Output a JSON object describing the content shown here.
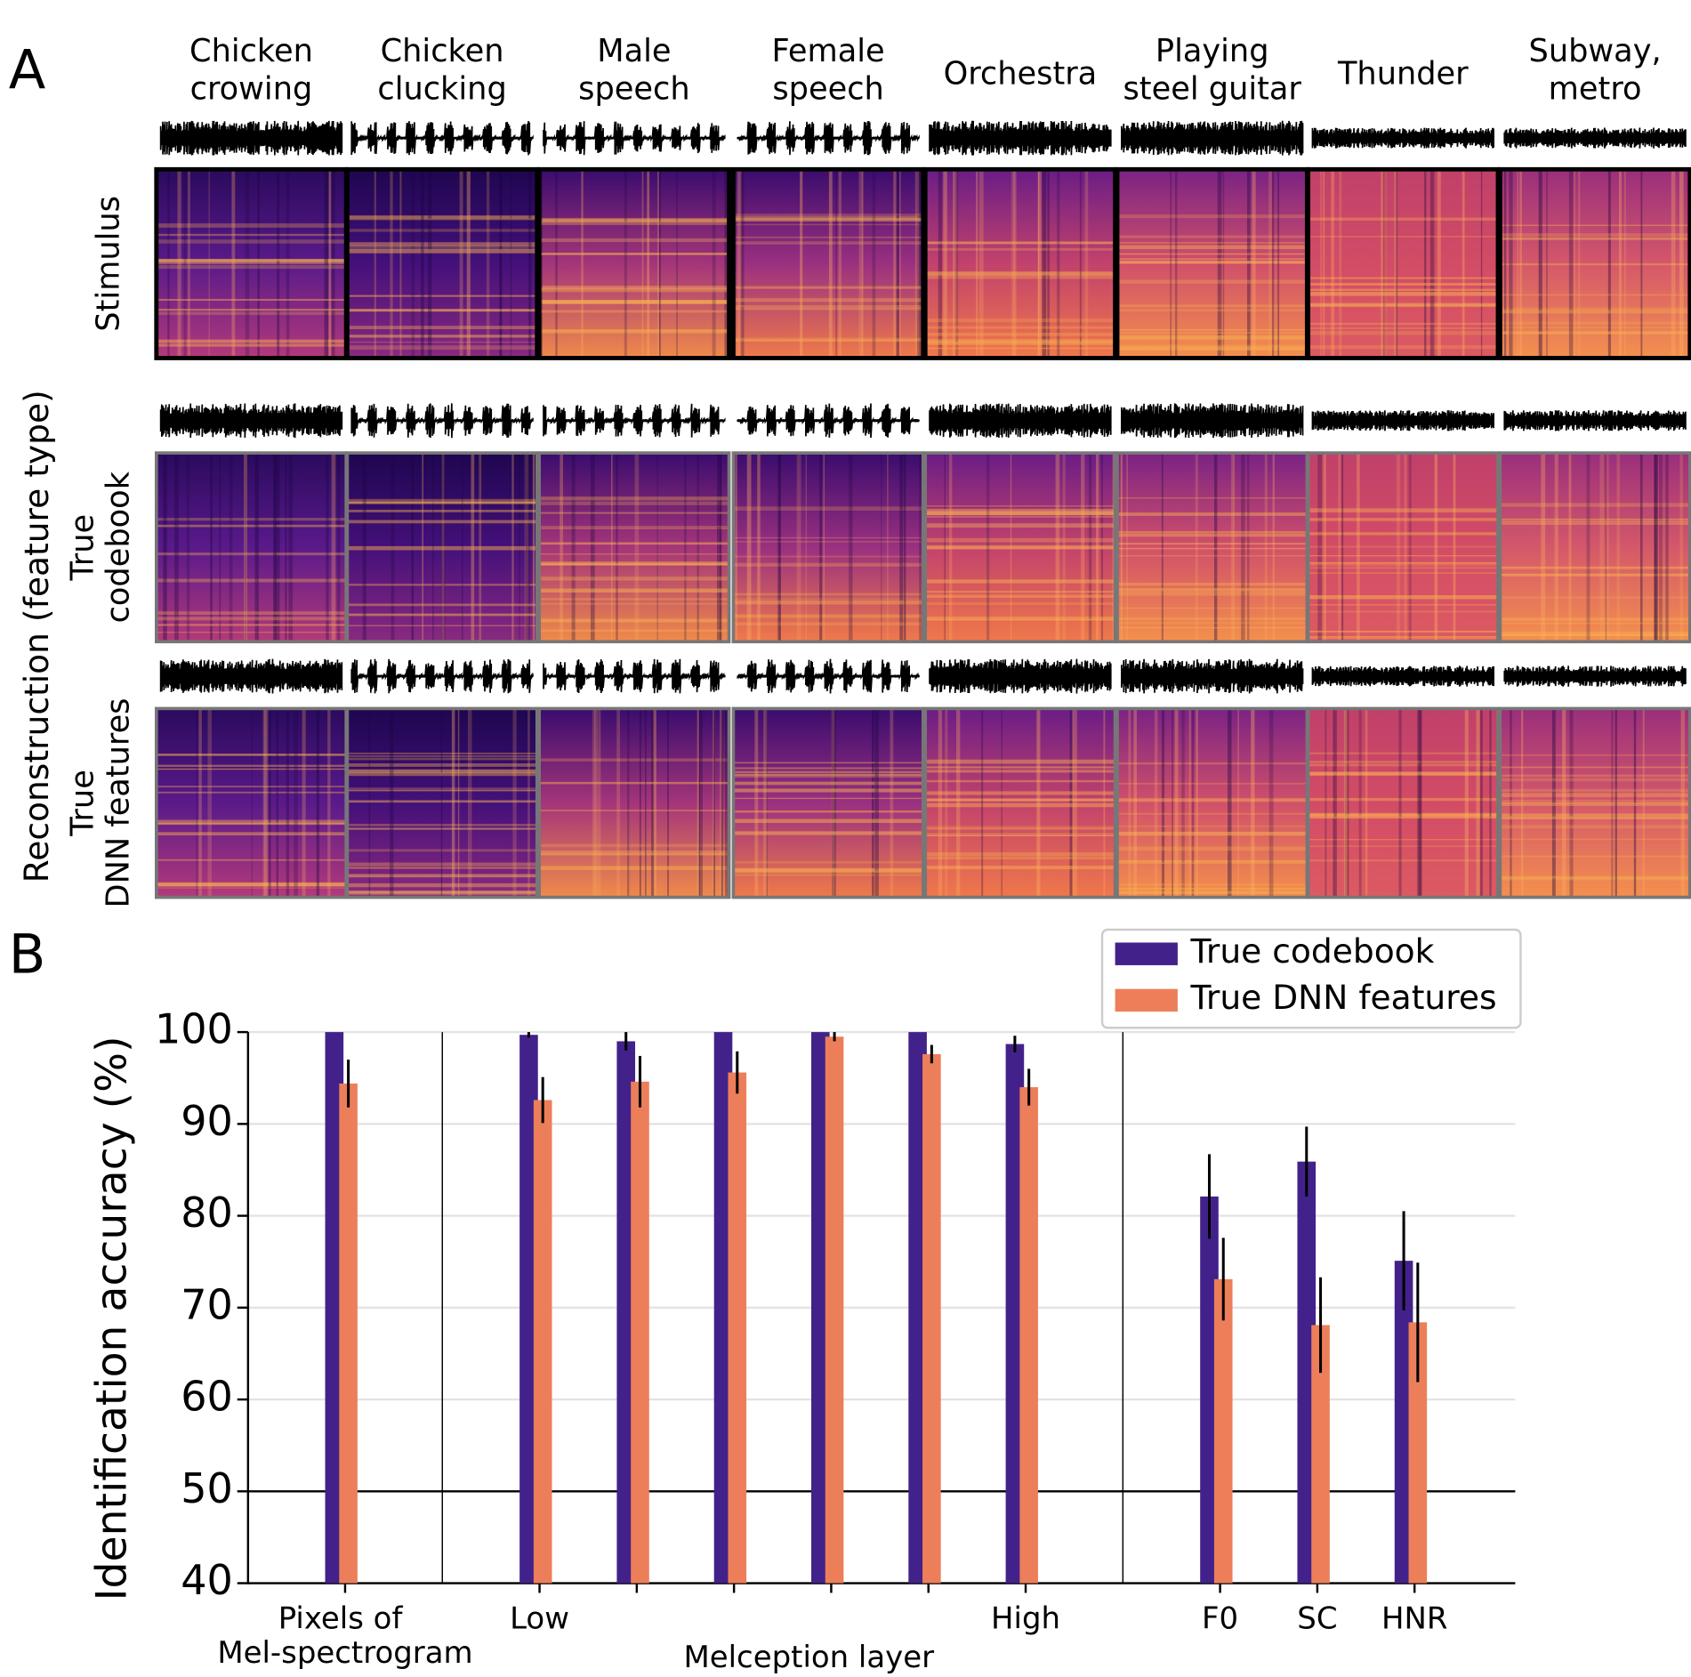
{
  "panel_a": {
    "label": "A",
    "columns": [
      [
        "Chicken",
        "crowing"
      ],
      [
        "Chicken",
        "clucking"
      ],
      [
        "Male",
        "speech"
      ],
      [
        "Female",
        "speech"
      ],
      [
        "Orchestra"
      ],
      [
        "Playing",
        "steel guitar"
      ],
      [
        "Thunder"
      ],
      [
        "Subway,",
        "metro"
      ]
    ],
    "row_group_label": "Reconstruction (feature type)",
    "rows": [
      [
        "Stimulus"
      ],
      [
        "True",
        "codebook"
      ],
      [
        "True",
        "DNN features"
      ]
    ]
  },
  "chart_data": {
    "type": "bar",
    "panel_label": "B",
    "ylabel": "Identification accuracy (%)",
    "xlabel": "Melception layer",
    "categories": [
      "Pixels of Mel-spectrogram",
      "Low",
      null,
      null,
      null,
      null,
      "High",
      "F0",
      "SC",
      "HNR"
    ],
    "series": [
      {
        "name": "True codebook",
        "color": "#42228a",
        "values": [
          100,
          99.7,
          99,
          100,
          100,
          100,
          98.7,
          82.1,
          85.9,
          75.1
        ],
        "errors": [
          0,
          0.3,
          1,
          0,
          0,
          0,
          0.9,
          4.6,
          3.8,
          5.4
        ]
      },
      {
        "name": "True DNN features",
        "color": "#ec7f5a",
        "values": [
          94.4,
          92.6,
          94.6,
          95.6,
          99.5,
          97.6,
          94,
          73.1,
          68.1,
          68.4
        ],
        "errors": [
          2.6,
          2.5,
          2.8,
          2.3,
          0.5,
          1,
          2,
          4.5,
          5.2,
          6.5
        ]
      }
    ],
    "reference_line": 50,
    "ylim": [
      40,
      100
    ],
    "yticks": [
      40,
      50,
      60,
      70,
      80,
      90,
      100
    ],
    "grid": true,
    "legend": "top-right"
  }
}
